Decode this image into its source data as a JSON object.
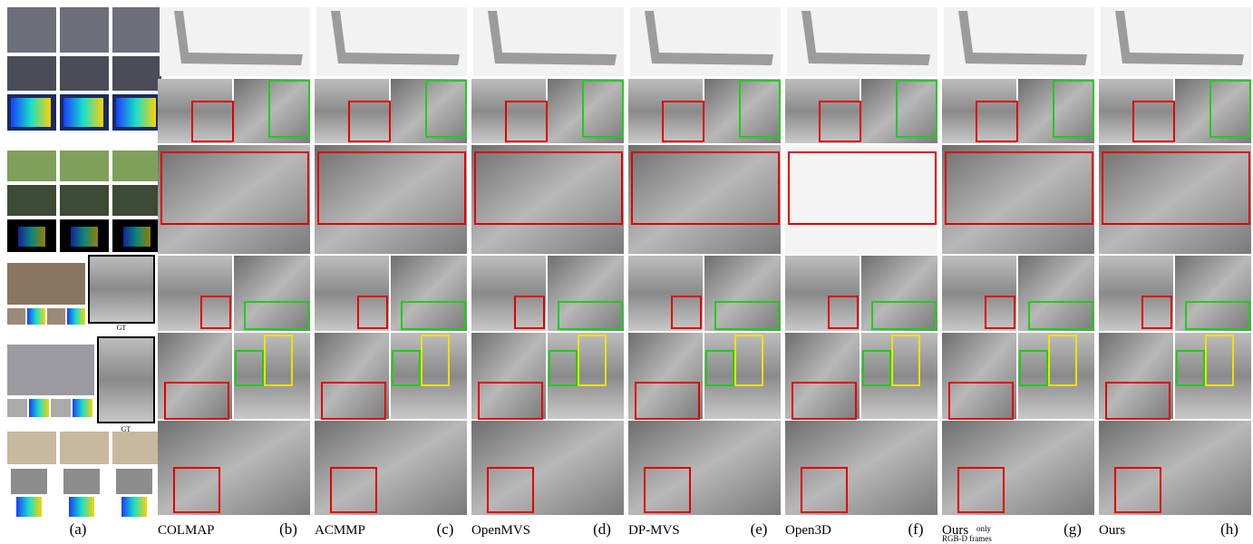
{
  "input_column": {
    "label": "(a)",
    "gt_labels": [
      "GT",
      "GT"
    ]
  },
  "columns": [
    {
      "method": "COLMAP",
      "label": "(b)"
    },
    {
      "method": "ACMMP",
      "label": "(c)"
    },
    {
      "method": "OpenMVS",
      "label": "(d)"
    },
    {
      "method": "DP-MVS",
      "label": "(e)"
    },
    {
      "method": "Open3D",
      "label": "(f)"
    },
    {
      "method": "Ours",
      "note": "only",
      "note2": "RGB-D frames",
      "label": "(g)"
    },
    {
      "method": "Ours",
      "label": "(h)"
    }
  ]
}
